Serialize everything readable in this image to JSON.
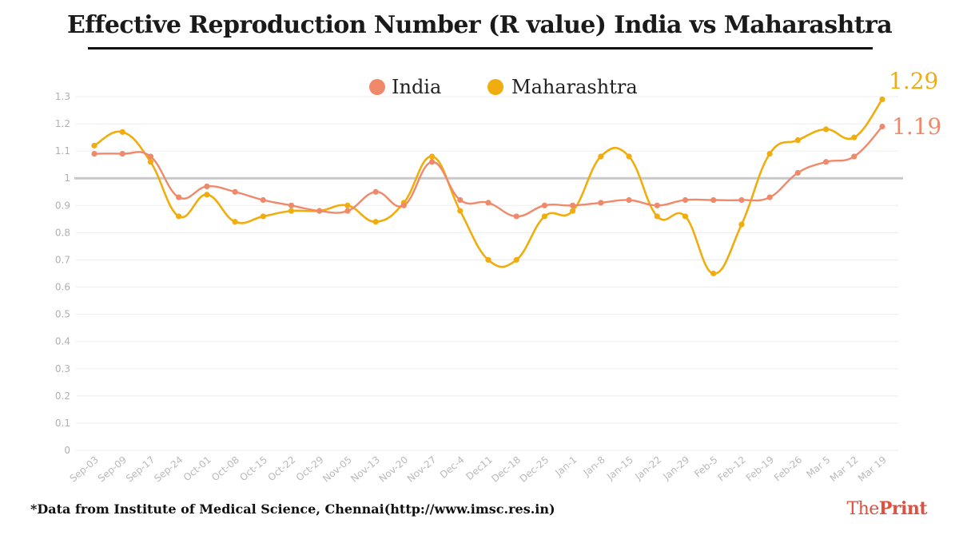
{
  "title": "Effective Reproduction Number (R value) India vs Maharashtra",
  "footnote": "*Data from Institute of Medical Science, Chennai(http://www.imsc.res.in)",
  "brand": {
    "prefix": "The",
    "suffix": "Print"
  },
  "colors": {
    "india": "#f0896a",
    "maharashtra": "#f0ad0d",
    "reference": "#c8c8c8",
    "grid": "#ededed"
  },
  "chart_data": {
    "type": "line",
    "title": "Effective Reproduction Number (R value) India vs Maharashtra",
    "xlabel": "",
    "ylabel": "",
    "ylim": [
      0,
      1.3
    ],
    "yticks": [
      "0",
      "0.1",
      "0.2",
      "0.3",
      "0.4",
      "0.5",
      "0.6",
      "0.7",
      "0.8",
      "0.9",
      "1",
      "1.1",
      "1.2",
      "1.3"
    ],
    "reference_line": 1,
    "legend_position": "top-center",
    "categories": [
      "Sep-03",
      "Sep-09",
      "Sep-17",
      "Sep-24",
      "Oct-01",
      "Oct-08",
      "Oct-15",
      "Oct-22",
      "Oct-29",
      "Nov-05",
      "Nov-13",
      "Nov-20",
      "Nov-27",
      "Dec-4",
      "Dec11",
      "Dec-18",
      "Dec-25",
      "Jan-1",
      "Jan-8",
      "Jan-15",
      "Jan-22",
      "Jan-29",
      "Feb-5",
      "Feb-12",
      "Feb-19",
      "Feb-26",
      "Mar 5",
      "Mar 12",
      "Mar 19"
    ],
    "series": [
      {
        "name": "India",
        "values": [
          1.09,
          1.09,
          1.08,
          0.93,
          0.97,
          0.95,
          0.92,
          0.9,
          0.88,
          0.88,
          0.95,
          0.9,
          1.06,
          0.92,
          0.91,
          0.86,
          0.9,
          0.9,
          0.91,
          0.92,
          0.9,
          0.92,
          0.92,
          0.92,
          0.93,
          1.02,
          1.06,
          1.08,
          1.19
        ],
        "end_label": "1.19"
      },
      {
        "name": "Maharashtra",
        "values": [
          1.12,
          1.17,
          1.06,
          0.86,
          0.94,
          0.84,
          0.86,
          0.88,
          0.88,
          0.9,
          0.84,
          0.91,
          1.08,
          0.88,
          0.7,
          0.7,
          0.86,
          0.88,
          1.08,
          1.08,
          0.86,
          0.86,
          0.65,
          0.83,
          1.09,
          1.14,
          1.18,
          1.15,
          1.29
        ],
        "end_label": "1.29"
      }
    ]
  }
}
